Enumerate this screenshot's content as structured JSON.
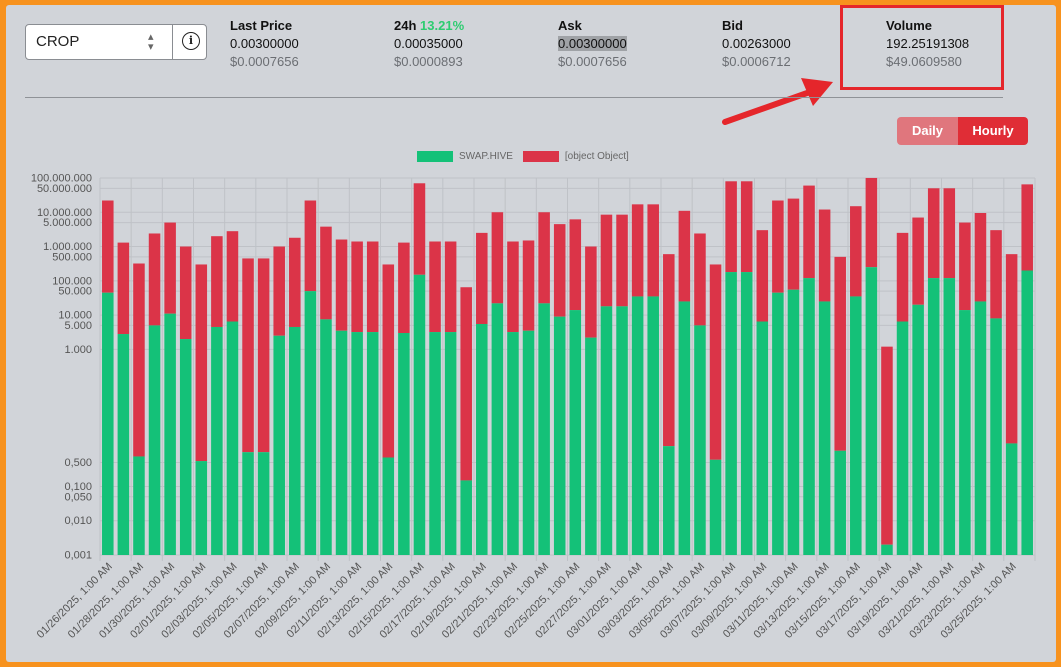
{
  "token_selector": {
    "value": "CROP"
  },
  "icons": {
    "sort": "sort-icon",
    "info": "info-icon"
  },
  "stats": {
    "last_price": {
      "label": "Last Price",
      "value": "0.00300000",
      "usd": "$0.0007656"
    },
    "change_24h": {
      "label": "24h",
      "pct": "13.21%",
      "value": "0.00035000",
      "usd": "$0.0000893"
    },
    "ask": {
      "label": "Ask",
      "value_hl": "0.00300000",
      "usd": "$0.0007656"
    },
    "bid": {
      "label": "Bid",
      "value": "0.00263000",
      "usd": "$0.0006712"
    },
    "volume": {
      "label": "Volume",
      "value": "192.25191308",
      "usd": "$49.0609580"
    }
  },
  "colors": {
    "accent_red": "#e5262b",
    "green": "#2ecc71",
    "series_green": "#14c178",
    "series_red": "#db3448"
  },
  "toggle": {
    "daily_label": "Daily",
    "hourly_label": "Hourly",
    "selected": "Hourly"
  },
  "chart_data": {
    "type": "bar",
    "stacked": true,
    "y_scale": "log",
    "ylim": [
      0.001,
      100000000
    ],
    "y_tick_labels": [
      "100.000.000",
      "50.000.000",
      "10.000.000",
      "5.000.000",
      "1.000.000",
      "500.000",
      "100.000",
      "50.000",
      "10.000",
      "5.000",
      "1.000",
      "0,500",
      "0,100",
      "0,050",
      "0,010",
      "0,001"
    ],
    "legend": [
      {
        "name": "SWAP.HIVE",
        "color": "#14c178"
      },
      {
        "name": "[object Object]",
        "color": "#db3448"
      }
    ],
    "x_tick_labels": [
      "01/26/2025, 1:00 AM",
      "01/28/2025, 1:00 AM",
      "01/30/2025, 1:00 AM",
      "02/01/2025, 1:00 AM",
      "02/03/2025, 1:00 AM",
      "02/05/2025, 1:00 AM",
      "02/07/2025, 1:00 AM",
      "02/09/2025, 1:00 AM",
      "02/11/2025, 1:00 AM",
      "02/13/2025, 1:00 AM",
      "02/15/2025, 1:00 AM",
      "02/17/2025, 1:00 AM",
      "02/19/2025, 1:00 AM",
      "02/21/2025, 1:00 AM",
      "02/23/2025, 1:00 AM",
      "02/25/2025, 1:00 AM",
      "02/27/2025, 1:00 AM",
      "03/01/2025, 1:00 AM",
      "03/03/2025, 1:00 AM",
      "03/05/2025, 1:00 AM",
      "03/07/2025, 1:00 AM",
      "03/09/2025, 1:00 AM",
      "03/11/2025, 1:00 AM",
      "03/13/2025, 1:00 AM",
      "03/15/2025, 1:00 AM",
      "03/17/2025, 1:00 AM",
      "03/19/2025, 1:00 AM",
      "03/21/2025, 1:00 AM",
      "03/23/2025, 1:00 AM",
      "03/25/2025, 1:00 AM"
    ],
    "series": [
      {
        "name": "SWAP.HIVE",
        "values": [
          45000,
          2800,
          0.75,
          5000,
          11000,
          2000,
          0.55,
          4500,
          6500,
          1,
          1,
          2500,
          4500,
          50000,
          7500,
          3500,
          3200,
          3200,
          0.7,
          3000,
          150000,
          3200,
          3200,
          0.15,
          5500,
          22000,
          3200,
          3500,
          22000,
          9000,
          14000,
          2200,
          18000,
          18000,
          35000,
          35000,
          1.5,
          25000,
          5000,
          0.6,
          180000,
          180000,
          6500,
          45000,
          55000,
          120000,
          25000,
          1.1,
          35000,
          250000,
          0.002,
          6500,
          20000,
          120000,
          120000,
          14000,
          25000,
          8000,
          1.8,
          200000
        ]
      },
      {
        "name": "[object Object]",
        "values": [
          22000000,
          1300000,
          320000,
          2400000,
          5000000,
          1000000,
          300000,
          2000000,
          2800000,
          450000,
          450000,
          1000000,
          1800000,
          22000000,
          3800000,
          1600000,
          1400000,
          1400000,
          300000,
          1300000,
          70000000,
          1400000,
          1400000,
          65000,
          2500000,
          10000000,
          1400000,
          1500000,
          10000000,
          4500000,
          6200000,
          1000000,
          8500000,
          8500000,
          17000000,
          17000000,
          600000,
          11000000,
          2400000,
          300000,
          80000000,
          80000000,
          3000000,
          22000000,
          25000000,
          60000000,
          12000000,
          500000,
          15000000,
          100000000,
          1200,
          2500000,
          7000000,
          50000000,
          50000000,
          5000000,
          9500000,
          3000000,
          600000,
          65000000
        ]
      }
    ]
  }
}
